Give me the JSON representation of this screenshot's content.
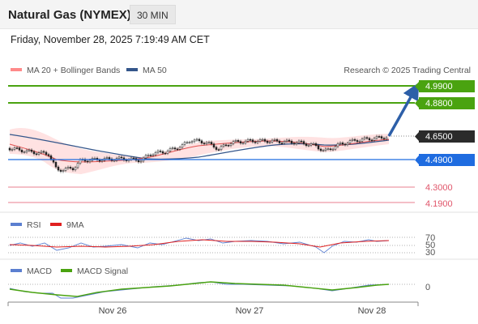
{
  "header": {
    "title": "Natural Gas (NYMEX)",
    "timeframe": "30 MIN",
    "datetime": "Friday, November 28, 2025 7:19:49 AM CET"
  },
  "legend": {
    "ma20": "MA 20 + Bollinger Bands",
    "ma50": "MA 50",
    "copyright": "Research © 2025 Trading Central",
    "rsi": "RSI",
    "rsi_ma": "9MA",
    "macd": "MACD",
    "macd_signal": "MACD Signal"
  },
  "colors": {
    "ma20": "#ff6b6b",
    "ma50": "#34568b",
    "resistance": "#4aa310",
    "pivot": "#1f6ce0",
    "support": "#e0556a",
    "last": "#2b2b2b",
    "arrow": "#2d5fa8",
    "rsi": "#5b7fd0",
    "rsi_ma": "#e02020",
    "macd": "#5b7fd0",
    "macd_signal": "#4aa310"
  },
  "levels": [
    {
      "label": "4.9900",
      "type": "resistance"
    },
    {
      "label": "4.8800",
      "type": "resistance"
    },
    {
      "label": "4.6500",
      "type": "last"
    },
    {
      "label": "4.4900",
      "type": "pivot"
    },
    {
      "label": "4.3000",
      "type": "support"
    },
    {
      "label": "4.1900",
      "type": "support"
    }
  ],
  "rsi_levels": [
    "70",
    "50",
    "30"
  ],
  "macd_levels": [
    "0"
  ],
  "x_axis": [
    "Nov 26",
    "Nov 27",
    "Nov 28"
  ]
}
